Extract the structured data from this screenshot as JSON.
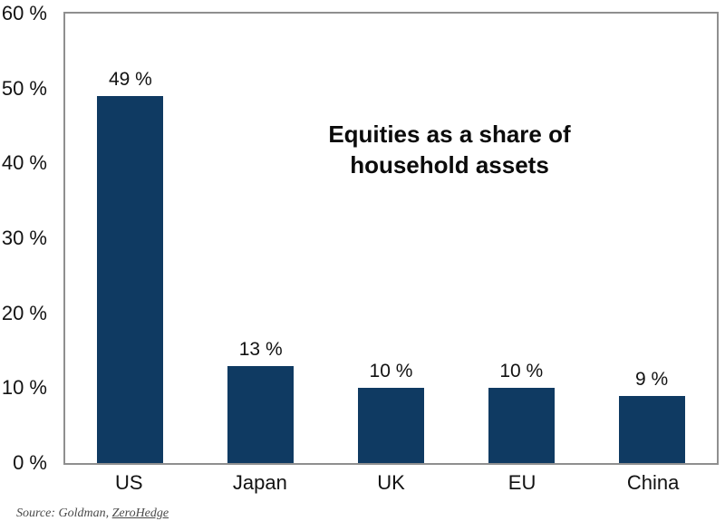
{
  "chart_data": {
    "type": "bar",
    "title": "Equities as a share of\nhousehold assets",
    "categories": [
      "US",
      "Japan",
      "UK",
      "EU",
      "China"
    ],
    "values": [
      49,
      13,
      10,
      10,
      9
    ],
    "value_labels": [
      "49 %",
      "13 %",
      "10 %",
      "10 %",
      "9 %"
    ],
    "y_ticks": [
      {
        "value": 0,
        "label": "0 %"
      },
      {
        "value": 10,
        "label": "10 %"
      },
      {
        "value": 20,
        "label": "20 %"
      },
      {
        "value": 30,
        "label": "30 %"
      },
      {
        "value": 40,
        "label": "40 %"
      },
      {
        "value": 50,
        "label": "50 %"
      },
      {
        "value": 60,
        "label": "60 %"
      }
    ],
    "ylim": [
      0,
      60
    ],
    "bar_color": "#0f3a62",
    "plot_border_color": "#8f8f8f",
    "grid": false,
    "legend": false
  },
  "source": {
    "prefix": "Source: Goldman, ",
    "link": "ZeroHedge"
  }
}
